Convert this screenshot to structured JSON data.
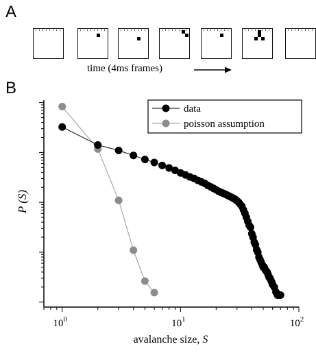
{
  "panel_a": {
    "letter": "A",
    "caption": "time (4ms frames)",
    "frames": [
      {
        "active": []
      },
      {
        "active": [
          [
            5,
            1
          ]
        ]
      },
      {
        "active": [
          [
            5,
            2
          ]
        ]
      },
      {
        "active": [
          [
            6,
            0
          ],
          [
            7,
            1
          ]
        ]
      },
      {
        "active": [
          [
            5,
            1
          ]
        ]
      },
      {
        "active": [
          [
            4,
            0
          ],
          [
            4,
            1
          ],
          [
            3,
            2
          ],
          [
            5,
            2
          ]
        ]
      },
      {
        "active": []
      }
    ]
  },
  "panel_b": {
    "letter": "B"
  },
  "chart_data": {
    "type": "line",
    "title": "",
    "xlabel": "avalanche size, S",
    "ylabel": "P (S)",
    "x_scale": "log",
    "y_scale": "log",
    "xlim": [
      0.7,
      100
    ],
    "ylim_decades": [
      -4,
      0
    ],
    "x_ticks": [
      {
        "value": 1,
        "label": "10",
        "exp": "0"
      },
      {
        "value": 10,
        "label": "10",
        "exp": "1"
      },
      {
        "value": 100,
        "label": "10",
        "exp": "2"
      }
    ],
    "grid": false,
    "legend_position": "top-right",
    "series": [
      {
        "name": "data",
        "color": "#000000",
        "line_color": "#333333",
        "x": [
          1,
          2,
          3,
          4,
          5,
          6,
          7,
          8,
          9,
          10,
          11,
          12,
          13,
          14,
          15,
          16,
          17,
          18,
          19,
          20,
          21,
          22,
          23,
          24,
          25,
          26,
          27,
          28,
          29,
          30,
          31,
          32,
          33,
          34,
          35,
          36,
          37,
          38,
          39,
          40,
          41,
          42,
          43,
          44,
          45,
          46,
          47,
          48,
          49,
          50,
          51,
          52,
          53,
          54,
          55,
          56,
          57,
          58,
          59,
          60,
          62,
          64,
          66,
          68,
          70
        ],
        "y_log10": [
          -0.49,
          -0.85,
          -0.96,
          -1.06,
          -1.14,
          -1.2,
          -1.26,
          -1.31,
          -1.36,
          -1.41,
          -1.45,
          -1.49,
          -1.52,
          -1.56,
          -1.59,
          -1.62,
          -1.66,
          -1.69,
          -1.72,
          -1.75,
          -1.78,
          -1.8,
          -1.82,
          -1.84,
          -1.86,
          -1.88,
          -1.9,
          -1.92,
          -1.94,
          -1.97,
          -2.0,
          -2.04,
          -2.08,
          -2.15,
          -2.22,
          -2.3,
          -2.38,
          -2.46,
          -2.5,
          -2.63,
          -2.7,
          -2.8,
          -2.85,
          -2.95,
          -3.0,
          -3.1,
          -3.15,
          -3.2,
          -3.25,
          -3.3,
          -3.3,
          -3.35,
          -3.38,
          -3.4,
          -3.45,
          -3.5,
          -3.52,
          -3.56,
          -3.6,
          -3.65,
          -3.7,
          -3.8,
          -3.86,
          -3.86,
          -3.86
        ]
      },
      {
        "name": "poisson assumption",
        "color": "#8c8c8c",
        "line_color": "#a8a8a8",
        "x": [
          1,
          2,
          3,
          4,
          5,
          6
        ],
        "y_log10": [
          -0.08,
          -0.93,
          -1.96,
          -2.96,
          -3.58,
          -3.81
        ]
      }
    ]
  }
}
